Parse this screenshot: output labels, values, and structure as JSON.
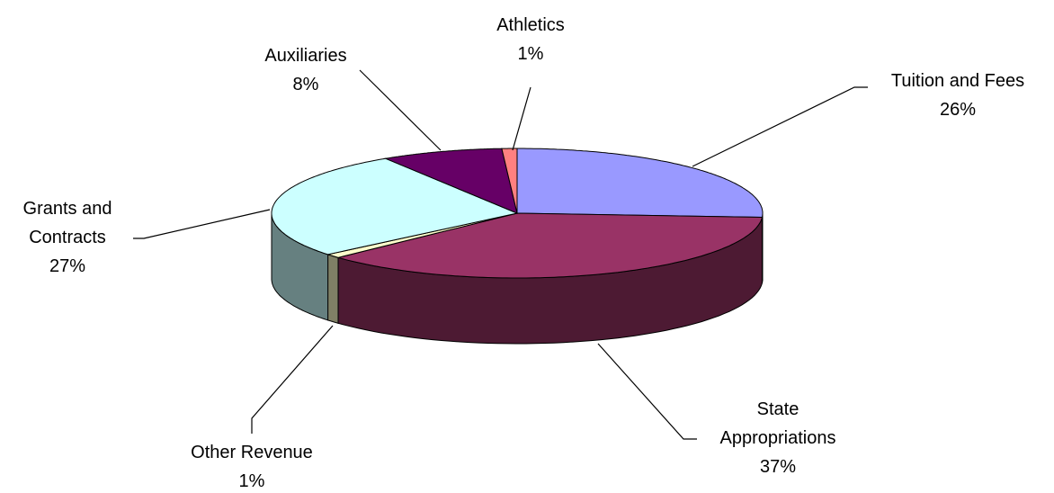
{
  "chart_data": {
    "type": "pie3d",
    "categories": [
      "Tuition and Fees",
      "State Appropriations",
      "Other Revenue",
      "Grants and Contracts",
      "Auxiliaries",
      "Athletics"
    ],
    "values": [
      26,
      37,
      1,
      27,
      8,
      1
    ],
    "value_labels": [
      "26%",
      "37%",
      "1%",
      "27%",
      "8%",
      "1%"
    ],
    "colors": [
      "#9999ff",
      "#993366",
      "#ffffcc",
      "#ccffff",
      "#660066",
      "#ff8080"
    ]
  }
}
